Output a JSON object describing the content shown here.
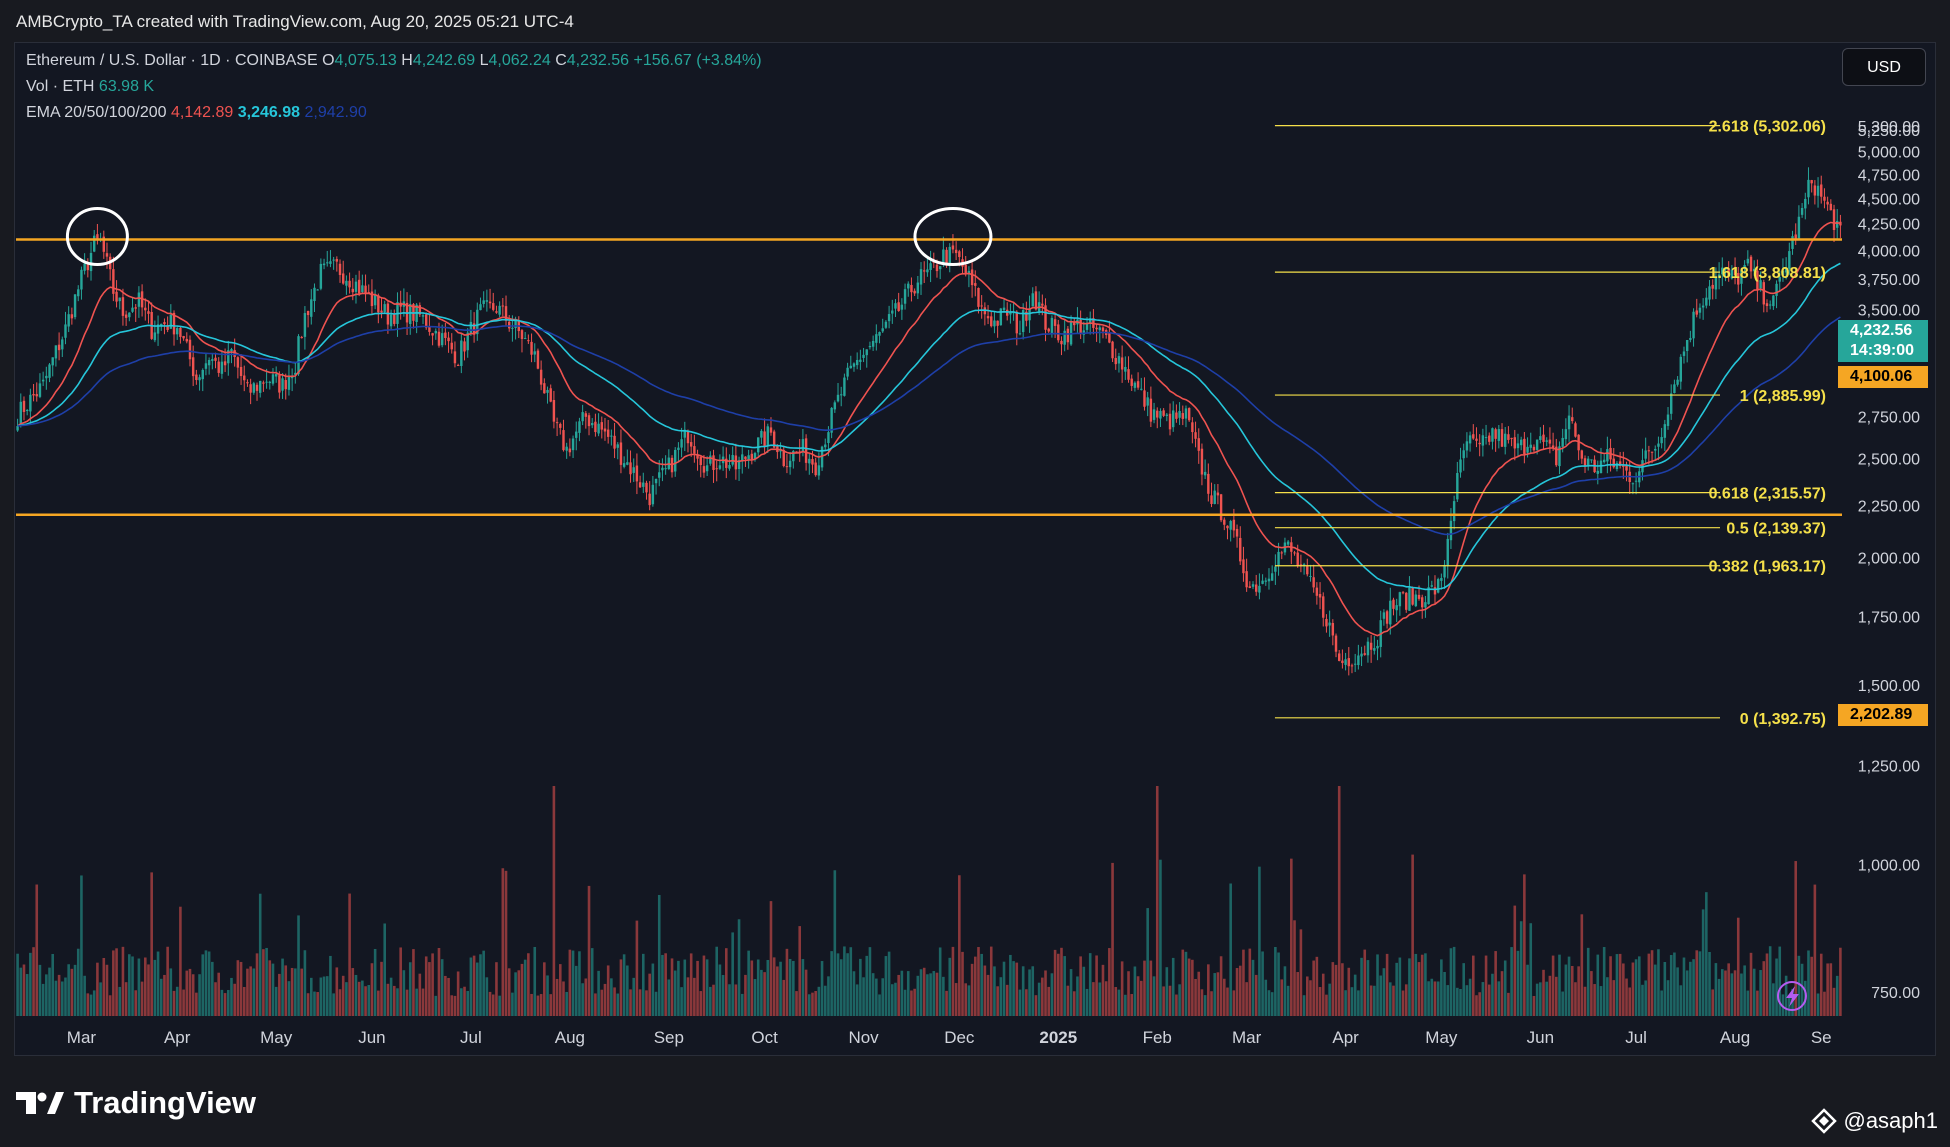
{
  "header": {
    "credit": "AMBCrypto_TA created with TradingView.com, Aug 20, 2025 05:21 UTC-4"
  },
  "legend": {
    "symbol": "Ethereum / U.S. Dollar · 1D · COINBASE",
    "o_label": "O",
    "o_value": "4,075.13",
    "h_label": "H",
    "h_value": "4,242.69",
    "l_label": "L",
    "l_value": "4,062.24",
    "c_label": "C",
    "c_value": "4,232.56",
    "change": "+156.67 (+3.84%)",
    "vol_label": "Vol · ETH",
    "vol_value": "63.98 K",
    "ema_label": "EMA 20/50/100/200",
    "ema_values": [
      "4,142.89",
      "3,246.98",
      "2,942.90"
    ]
  },
  "currency_button": "USD",
  "price_tags": {
    "last_price": "4,232.56",
    "countdown": "14:39:00",
    "resistance": "4,100.06",
    "support": "2,202.89"
  },
  "colors": {
    "background": "#131722",
    "up": "#26a69a",
    "down": "#ef5350",
    "ema20": "#ef5350",
    "ema50": "#26c6da",
    "ema100": "#1e3fa8",
    "horizontal_level": "#f5a623",
    "fib": "#f5e04a"
  },
  "footer": {
    "brand": "TradingView",
    "user": "@asaph1"
  },
  "chart_data": {
    "type": "candlestick",
    "symbol": "ETH/USD",
    "y_axis": {
      "min": 700,
      "max": 5400,
      "ticks": [
        "5,300.00",
        "5,250.00",
        "5,000.00",
        "4,750.00",
        "4,500.00",
        "4,250.00",
        "4,000.00",
        "3,750.00",
        "3,500.00",
        "3,250.00",
        "3,000.00",
        "2,750.00",
        "2,500.00",
        "2,250.00",
        "2,000.00",
        "1,750.00",
        "1,500.00",
        "1,250.00",
        "1,000.00",
        "750.00"
      ],
      "tick_values": [
        5300,
        5250,
        5000,
        4750,
        4500,
        4250,
        4000,
        3750,
        3500,
        3250,
        3000,
        2750,
        2500,
        2250,
        2000,
        1750,
        1500,
        1250,
        1000,
        750
      ]
    },
    "x_axis": {
      "labels": [
        "Mar",
        "Apr",
        "May",
        "Jun",
        "Jul",
        "Aug",
        "Sep",
        "Oct",
        "Nov",
        "Dec",
        "2025",
        "Feb",
        "Mar",
        "Apr",
        "May",
        "Jun",
        "Jul",
        "Aug",
        "Se"
      ],
      "label_index": [
        20,
        50,
        81,
        111,
        142,
        173,
        204,
        234,
        265,
        295,
        326,
        357,
        385,
        416,
        446,
        477,
        507,
        538,
        565
      ]
    },
    "price_anchors": [
      [
        0,
        2760
      ],
      [
        8,
        2950
      ],
      [
        15,
        3350
      ],
      [
        20,
        3750
      ],
      [
        24,
        4050
      ],
      [
        26,
        4080
      ],
      [
        30,
        3650
      ],
      [
        33,
        3480
      ],
      [
        38,
        3560
      ],
      [
        42,
        3350
      ],
      [
        46,
        3400
      ],
      [
        50,
        3380
      ],
      [
        56,
        3000
      ],
      [
        60,
        3150
      ],
      [
        64,
        3050
      ],
      [
        67,
        3180
      ],
      [
        72,
        2900
      ],
      [
        78,
        3000
      ],
      [
        83,
        2950
      ],
      [
        87,
        3100
      ],
      [
        90,
        3450
      ],
      [
        95,
        3800
      ],
      [
        100,
        3850
      ],
      [
        104,
        3760
      ],
      [
        110,
        3600
      ],
      [
        116,
        3450
      ],
      [
        120,
        3500
      ],
      [
        126,
        3450
      ],
      [
        132,
        3300
      ],
      [
        138,
        3150
      ],
      [
        145,
        3480
      ],
      [
        150,
        3520
      ],
      [
        154,
        3400
      ],
      [
        158,
        3300
      ],
      [
        162,
        3150
      ],
      [
        168,
        2700
      ],
      [
        172,
        2550
      ],
      [
        178,
        2750
      ],
      [
        184,
        2650
      ],
      [
        188,
        2550
      ],
      [
        192,
        2450
      ],
      [
        198,
        2300
      ],
      [
        204,
        2450
      ],
      [
        210,
        2650
      ],
      [
        216,
        2450
      ],
      [
        220,
        2500
      ],
      [
        225,
        2450
      ],
      [
        230,
        2550
      ],
      [
        236,
        2650
      ],
      [
        240,
        2500
      ],
      [
        246,
        2550
      ],
      [
        250,
        2470
      ],
      [
        256,
        2800
      ],
      [
        260,
        3000
      ],
      [
        264,
        3150
      ],
      [
        270,
        3300
      ],
      [
        276,
        3500
      ],
      [
        282,
        3750
      ],
      [
        286,
        3800
      ],
      [
        290,
        3950
      ],
      [
        294,
        3950
      ],
      [
        298,
        3750
      ],
      [
        302,
        3500
      ],
      [
        306,
        3400
      ],
      [
        310,
        3480
      ],
      [
        314,
        3350
      ],
      [
        318,
        3650
      ],
      [
        322,
        3400
      ],
      [
        327,
        3300
      ],
      [
        332,
        3380
      ],
      [
        337,
        3350
      ],
      [
        340,
        3300
      ],
      [
        346,
        3100
      ],
      [
        350,
        2950
      ],
      [
        355,
        2780
      ],
      [
        360,
        2720
      ],
      [
        366,
        2750
      ],
      [
        370,
        2500
      ],
      [
        374,
        2300
      ],
      [
        378,
        2200
      ],
      [
        382,
        2050
      ],
      [
        386,
        1870
      ],
      [
        390,
        1900
      ],
      [
        394,
        2000
      ],
      [
        398,
        2050
      ],
      [
        402,
        1950
      ],
      [
        406,
        1850
      ],
      [
        410,
        1750
      ],
      [
        414,
        1580
      ],
      [
        418,
        1600
      ],
      [
        422,
        1630
      ],
      [
        426,
        1680
      ],
      [
        430,
        1790
      ],
      [
        434,
        1820
      ],
      [
        440,
        1830
      ],
      [
        446,
        1880
      ],
      [
        450,
        2300
      ],
      [
        454,
        2600
      ],
      [
        458,
        2550
      ],
      [
        462,
        2650
      ],
      [
        466,
        2600
      ],
      [
        470,
        2550
      ],
      [
        474,
        2620
      ],
      [
        478,
        2580
      ],
      [
        482,
        2500
      ],
      [
        486,
        2750
      ],
      [
        490,
        2500
      ],
      [
        494,
        2450
      ],
      [
        498,
        2500
      ],
      [
        502,
        2450
      ],
      [
        506,
        2400
      ],
      [
        510,
        2500
      ],
      [
        514,
        2600
      ],
      [
        518,
        2900
      ],
      [
        522,
        3200
      ],
      [
        526,
        3500
      ],
      [
        530,
        3700
      ],
      [
        534,
        3800
      ],
      [
        538,
        3750
      ],
      [
        542,
        3850
      ],
      [
        546,
        3650
      ],
      [
        550,
        3550
      ],
      [
        554,
        3900
      ],
      [
        558,
        4250
      ],
      [
        562,
        4700
      ],
      [
        566,
        4450
      ],
      [
        570,
        4232
      ]
    ],
    "horizontal_levels": [
      4100.06,
      2202.89
    ],
    "fib_levels": [
      {
        "label": "2.618 (5,302.06)",
        "value": 5302.06
      },
      {
        "label": "1.618 (3,808.81)",
        "value": 3808.81
      },
      {
        "label": "1 (2,885.99)",
        "value": 2885.99
      },
      {
        "label": "0.618 (2,315.57)",
        "value": 2315.57
      },
      {
        "label": "0.5 (2,139.37)",
        "value": 2139.37
      },
      {
        "label": "0.382 (1,963.17)",
        "value": 1963.17
      },
      {
        "label": "0 (1,392.75)",
        "value": 1392.75
      }
    ],
    "fib_start_index": 397,
    "circled_peaks_index": [
      25,
      293
    ],
    "ema_spans": [
      20,
      50,
      100
    ],
    "total_bars": 572
  }
}
